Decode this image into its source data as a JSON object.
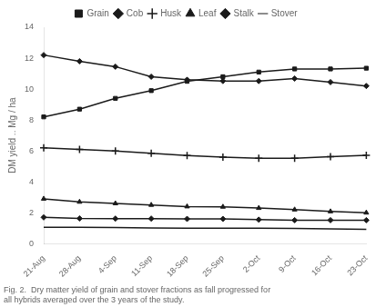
{
  "chart_data": {
    "type": "line",
    "categories": [
      "21-Aug",
      "28-Aug",
      "4-Sep",
      "11-Sep",
      "18-Sep",
      "25-Sep",
      "2-Oct",
      "9-Oct",
      "16-Oct",
      "23-Oct"
    ],
    "series": [
      {
        "name": "Grain",
        "color": "#1a1a1a",
        "marker": "square",
        "values": [
          8.2,
          8.7,
          9.4,
          9.9,
          10.5,
          10.8,
          11.1,
          11.3,
          11.3,
          11.35
        ]
      },
      {
        "name": "Cob",
        "color": "#1a1a1a",
        "marker": "diamond",
        "values": [
          12.2,
          11.8,
          11.45,
          10.8,
          10.6,
          10.52,
          10.52,
          10.68,
          10.45,
          10.2
        ]
      },
      {
        "name": "Husk",
        "color": "#1a1a1a",
        "marker": "plus",
        "values": [
          6.2,
          6.1,
          6.0,
          5.85,
          5.7,
          5.6,
          5.52,
          5.52,
          5.62,
          5.72
        ]
      },
      {
        "name": "Leaf",
        "color": "#1a1a1a",
        "marker": "triangle",
        "values": [
          2.9,
          2.7,
          2.6,
          2.5,
          2.4,
          2.38,
          2.3,
          2.2,
          2.08,
          2.0
        ]
      },
      {
        "name": "Stalk",
        "color": "#1a1a1a",
        "marker": "diamond",
        "values": [
          1.7,
          1.63,
          1.62,
          1.62,
          1.6,
          1.6,
          1.55,
          1.52,
          1.52,
          1.52
        ]
      },
      {
        "name": "Stover",
        "color": "#1a1a1a",
        "marker": "none",
        "values": [
          1.05,
          1.05,
          1.04,
          1.02,
          1.0,
          1.0,
          1.0,
          0.98,
          0.95,
          0.92
        ]
      }
    ],
    "ylabel": "DM yield .. Mg / ha",
    "caption": [
      "Fig. 2.  Dry matter yield of grain and stover fractions as fall progressed for",
      "all hybrids averaged over the 3 years of the study."
    ],
    "ylim": [
      0,
      14
    ],
    "yticks": [
      0,
      2,
      4,
      6,
      8,
      10,
      12,
      14
    ],
    "grid": false,
    "legend": "top"
  }
}
